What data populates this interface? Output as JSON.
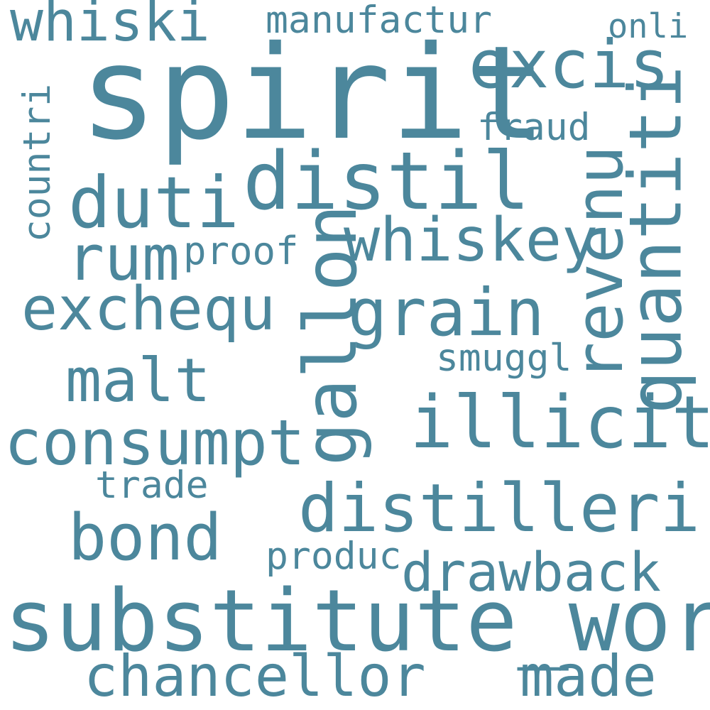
{
  "color": "#4c879c",
  "background": "#ffffff",
  "words": {
    "spirit": "spirit",
    "substitute_word": "substitute_word",
    "distil": "distil",
    "gallon": "gallon",
    "excis": "excis",
    "whiski": "whiski",
    "duti": "duti",
    "revenu": "revenu",
    "quantiti": "quantiti",
    "whiskey": "whiskey",
    "illicit": "illicit",
    "distilleri": "distilleri",
    "consumpt": "consumpt",
    "exchequ": "exchequ",
    "grain": "grain",
    "rum": "rum",
    "malt": "malt",
    "bond": "bond",
    "chancellor": "chancellor",
    "made": "made",
    "drawback": "drawback",
    "manufactur": "manufactur",
    "countri": "countri",
    "proof": "proof",
    "fraud": "fraud",
    "smuggl": "smuggl",
    "trade": "trade",
    "produc": "produc",
    "onli": "onli"
  }
}
